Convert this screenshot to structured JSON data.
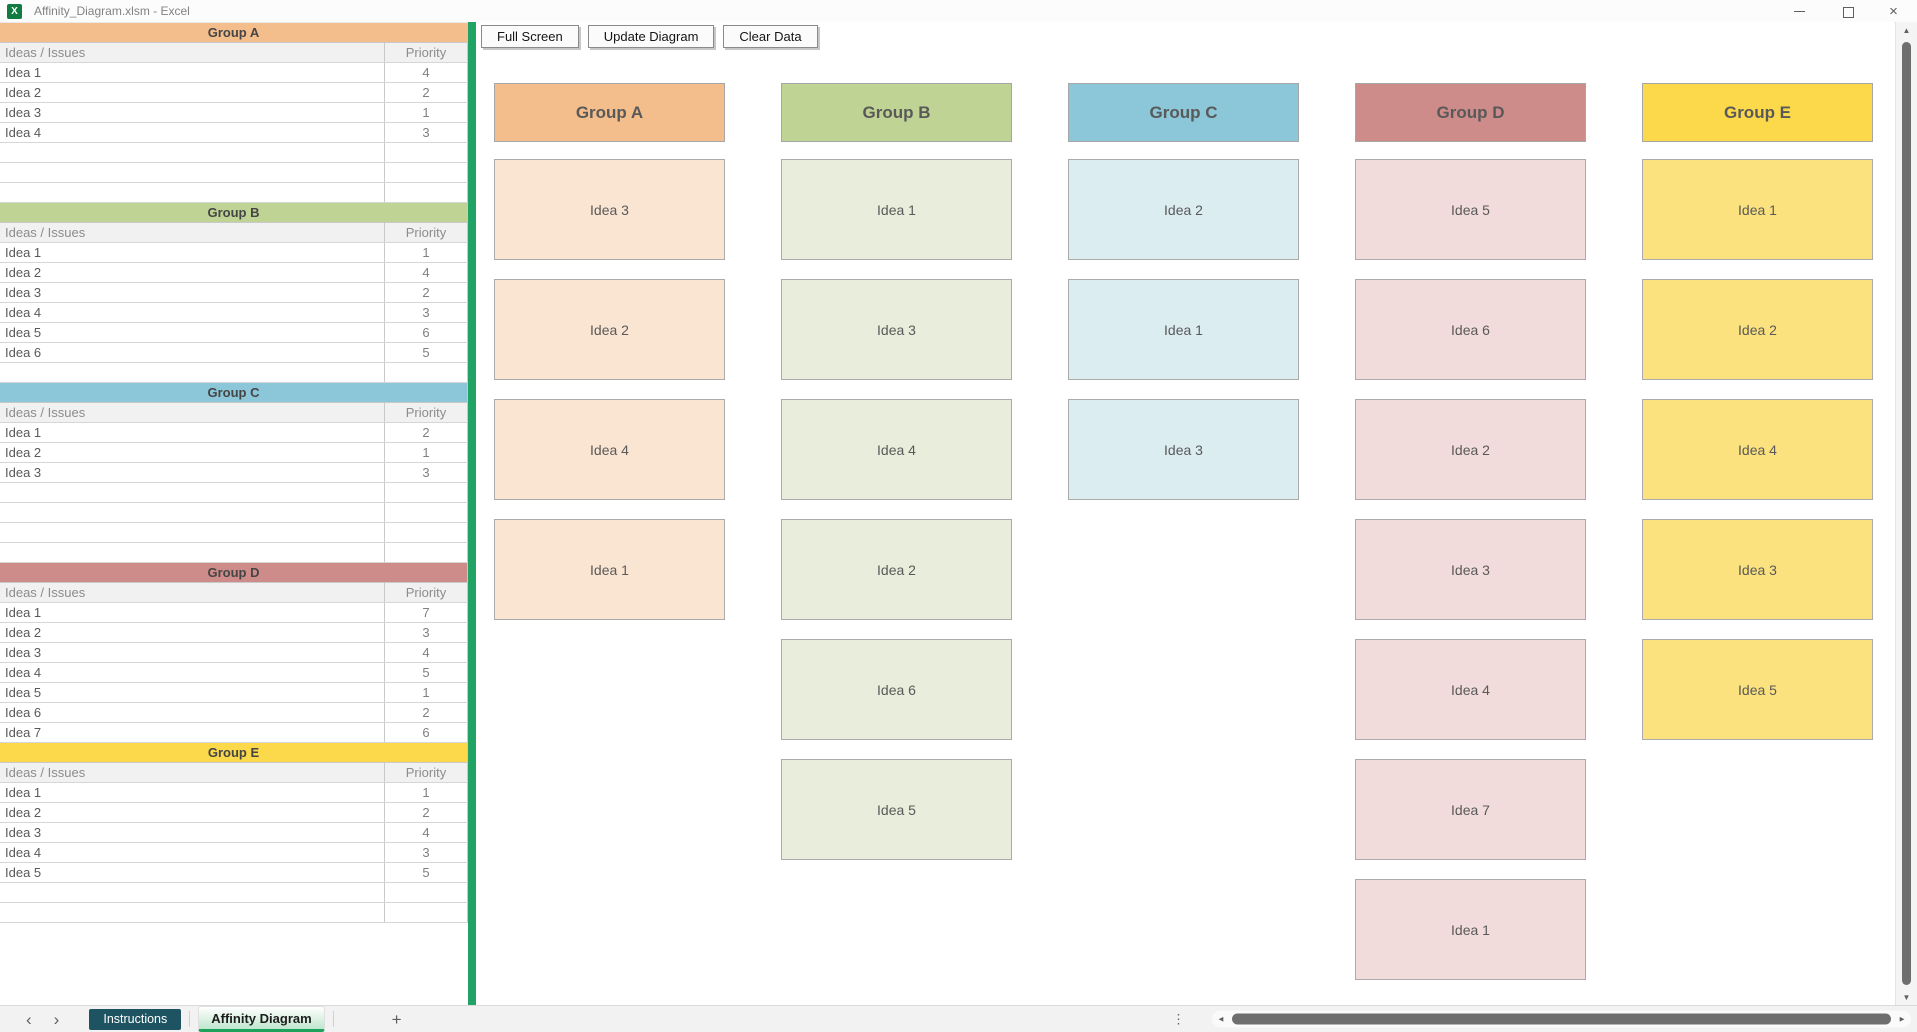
{
  "window": {
    "title": "Affinity_Diagram.xlsm - Excel",
    "app_icon_letter": "X"
  },
  "toolbar": {
    "buttons": [
      "Full Screen",
      "Update Diagram",
      "Clear Data"
    ]
  },
  "table_header": {
    "ideas": "Ideas / Issues",
    "priority": "Priority"
  },
  "groups": [
    {
      "name": "Group A",
      "colors": {
        "header": "#F4BE8C",
        "card": "#FAE5D3"
      },
      "table_rows": [
        {
          "idea": "Idea 1",
          "priority": 4
        },
        {
          "idea": "Idea 2",
          "priority": 2
        },
        {
          "idea": "Idea 3",
          "priority": 1
        },
        {
          "idea": "Idea 4",
          "priority": 3
        }
      ],
      "empty_rows": 3,
      "diagram_cards": [
        "Idea 3",
        "Idea 2",
        "Idea 4",
        "Idea 1"
      ]
    },
    {
      "name": "Group B",
      "colors": {
        "header": "#BFD394",
        "card": "#E9EEDC"
      },
      "table_rows": [
        {
          "idea": "Idea 1",
          "priority": 1
        },
        {
          "idea": "Idea 2",
          "priority": 4
        },
        {
          "idea": "Idea 3",
          "priority": 2
        },
        {
          "idea": "Idea 4",
          "priority": 3
        },
        {
          "idea": "Idea 5",
          "priority": 6
        },
        {
          "idea": "Idea 6",
          "priority": 5
        }
      ],
      "empty_rows": 1,
      "diagram_cards": [
        "Idea 1",
        "Idea 3",
        "Idea 4",
        "Idea 2",
        "Idea 6",
        "Idea 5"
      ]
    },
    {
      "name": "Group C",
      "colors": {
        "header": "#8BC7D8",
        "card": "#DCEDF2"
      },
      "table_rows": [
        {
          "idea": "Idea 1",
          "priority": 2
        },
        {
          "idea": "Idea 2",
          "priority": 1
        },
        {
          "idea": "Idea 3",
          "priority": 3
        }
      ],
      "empty_rows": 4,
      "diagram_cards": [
        "Idea 2",
        "Idea 1",
        "Idea 3"
      ]
    },
    {
      "name": "Group D",
      "colors": {
        "header": "#CD8C89",
        "card": "#F2DCDB"
      },
      "table_rows": [
        {
          "idea": "Idea 1",
          "priority": 7
        },
        {
          "idea": "Idea 2",
          "priority": 3
        },
        {
          "idea": "Idea 3",
          "priority": 4
        },
        {
          "idea": "Idea 4",
          "priority": 5
        },
        {
          "idea": "Idea 5",
          "priority": 1
        },
        {
          "idea": "Idea 6",
          "priority": 2
        },
        {
          "idea": "Idea 7",
          "priority": 6
        }
      ],
      "empty_rows": 0,
      "diagram_cards": [
        "Idea 5",
        "Idea 6",
        "Idea 2",
        "Idea 3",
        "Idea 4",
        "Idea 7",
        "Idea 1"
      ]
    },
    {
      "name": "Group E",
      "colors": {
        "header": "#FBD94B",
        "card": "#FBE27E"
      },
      "table_rows": [
        {
          "idea": "Idea 1",
          "priority": 1
        },
        {
          "idea": "Idea 2",
          "priority": 2
        },
        {
          "idea": "Idea 3",
          "priority": 4
        },
        {
          "idea": "Idea 4",
          "priority": 3
        },
        {
          "idea": "Idea 5",
          "priority": 5
        }
      ],
      "empty_rows": 2,
      "diagram_cards": [
        "Idea 1",
        "Idea 2",
        "Idea 4",
        "Idea 3",
        "Idea 5"
      ]
    }
  ],
  "sheet_tabs": [
    {
      "label": "Instructions",
      "active": false
    },
    {
      "label": "Affinity Diagram",
      "active": true
    }
  ],
  "colors": {
    "divider_green": "#21A366",
    "tab_active_underline": "#1EA15A",
    "tab_inactive_bg": "#1E5362",
    "scroll_thumb": "#6E6E6E"
  },
  "icons": {
    "minimize": "",
    "close": "×",
    "chevron_left": "‹",
    "chevron_right": "›",
    "plus": "+",
    "dots_handle": "⋮",
    "scroll_up": "▲",
    "scroll_down": "▼",
    "scroll_left": "◄",
    "scroll_right": "►"
  }
}
